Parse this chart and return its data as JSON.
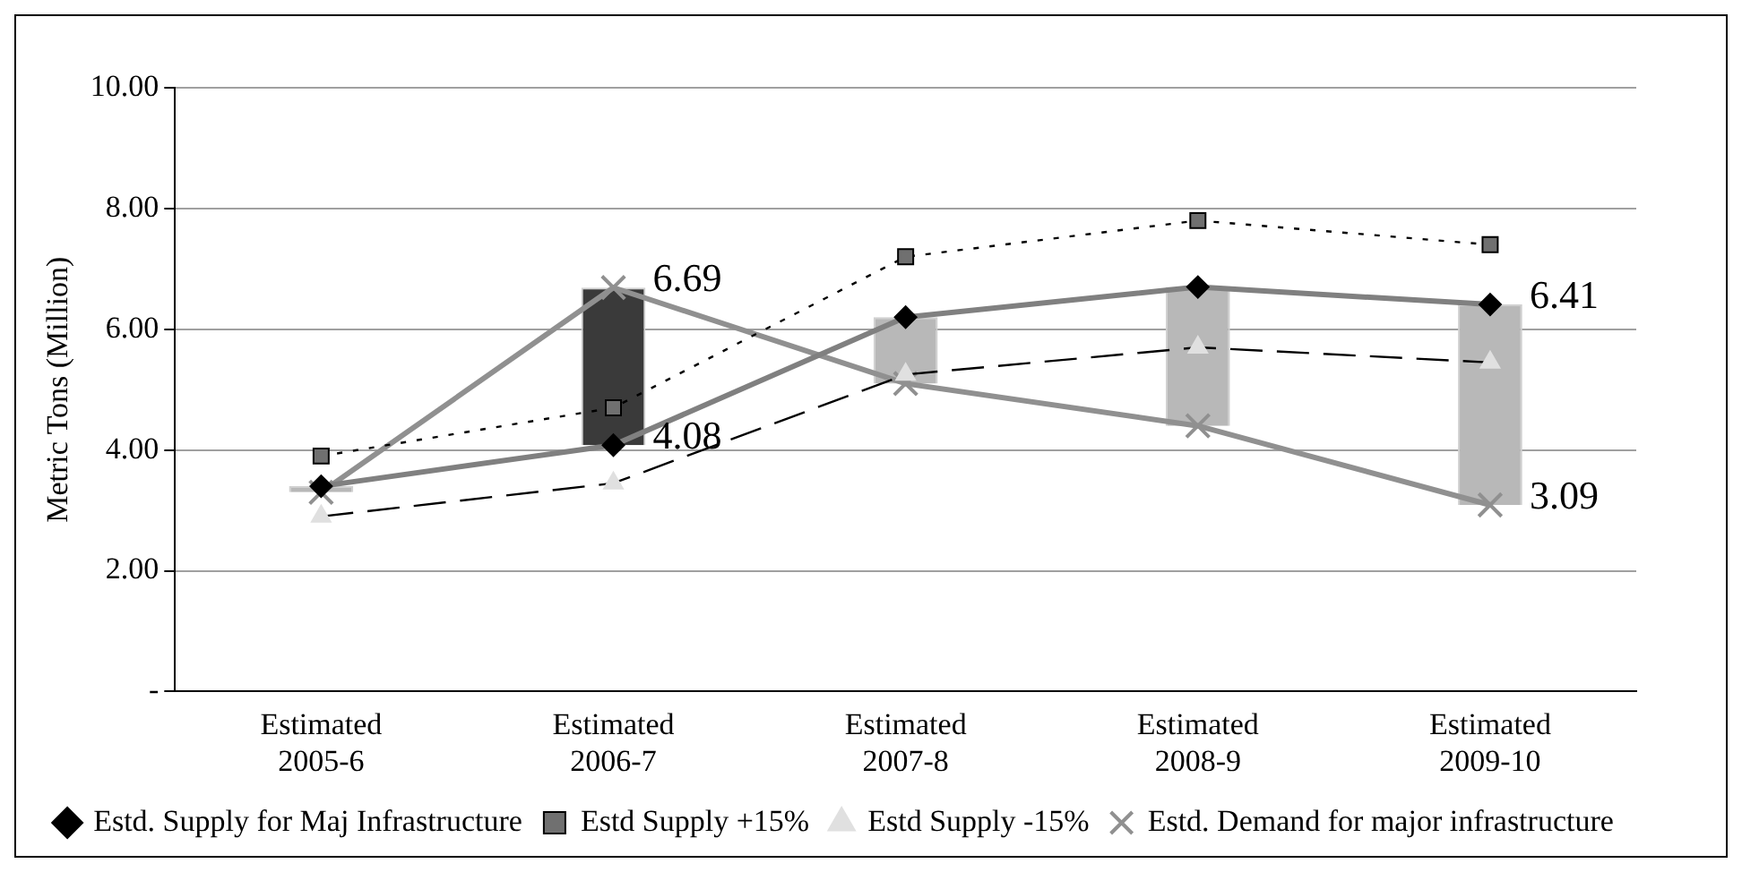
{
  "chart_data": {
    "type": "line",
    "ylabel": "Metric Tons (Million)",
    "categories": [
      "Estimated 2005-6",
      "Estimated 2006-7",
      "Estimated 2007-8",
      "Estimated 2008-9",
      "Estimated 2009-10"
    ],
    "ylim": [
      0,
      10
    ],
    "yticks": [
      {
        "value": 0,
        "label": "-"
      },
      {
        "value": 2,
        "label": "2.00"
      },
      {
        "value": 4,
        "label": "4.00"
      },
      {
        "value": 6,
        "label": "6.00"
      },
      {
        "value": 8,
        "label": "8.00"
      },
      {
        "value": 10,
        "label": "10.00"
      }
    ],
    "grid": "y",
    "legend": "bottom",
    "series": [
      {
        "type": "bar",
        "colors": [
          "#b8b8b8",
          "#3a3a3a",
          "#b8b8b8",
          "#b8b8b8",
          "#b8b8b8"
        ],
        "base": [
          3.4,
          4.08,
          6.2,
          6.7,
          6.41
        ],
        "values": [
          -0.1,
          2.61,
          -1.1,
          -2.3,
          -3.32
        ]
      },
      {
        "name": "Estd. Supply for Maj Infrastructure",
        "color": "#808080",
        "marker": "diamond",
        "line_style": "solid",
        "values": [
          3.4,
          4.08,
          6.2,
          6.7,
          6.41
        ],
        "value_labels": [
          null,
          "4.08",
          null,
          null,
          "6.41"
        ]
      },
      {
        "name": "Estd Supply +15%",
        "color": "#000000",
        "marker": "square",
        "line_style": "dotted",
        "values": [
          3.9,
          4.7,
          7.2,
          7.8,
          7.4
        ]
      },
      {
        "name": "Estd Supply -15%",
        "color": "#000000",
        "marker": "triangle",
        "line_style": "dashed",
        "values": [
          2.9,
          3.45,
          5.25,
          5.7,
          5.45
        ]
      },
      {
        "name": "Estd. Demand for major infrastructure",
        "color": "#909090",
        "marker": "cross",
        "line_style": "solid",
        "values": [
          3.3,
          6.69,
          5.1,
          4.4,
          3.09
        ],
        "value_labels": [
          null,
          "6.69",
          null,
          null,
          "3.09"
        ]
      }
    ]
  }
}
